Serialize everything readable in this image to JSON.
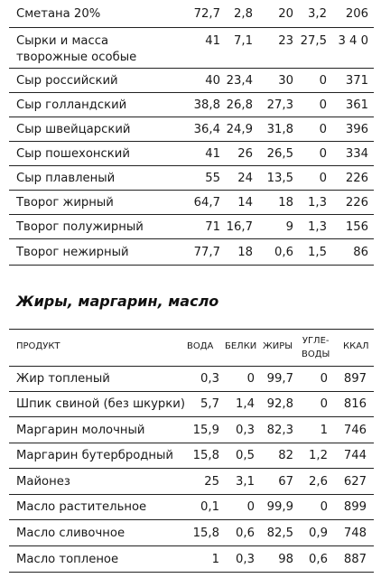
{
  "table1": {
    "rows": [
      {
        "name": "Сметана 20%",
        "water": "72,7",
        "protein": "2,8",
        "fat": "20",
        "carbs": "3,2",
        "kcal": "206"
      },
      {
        "name_line1": "Сырки и масса",
        "name_line2": "творожные особые",
        "water": "41",
        "protein": "7,1",
        "fat": "23",
        "carbs": "27,5",
        "kcal": "3 4 0"
      },
      {
        "name": "Сыр российский",
        "water": "40",
        "protein": "23,4",
        "fat": "30",
        "carbs": "0",
        "kcal": "371"
      },
      {
        "name": "Сыр голландский",
        "water": "38,8",
        "protein": "26,8",
        "fat": "27,3",
        "carbs": "0",
        "kcal": "361"
      },
      {
        "name": "Сыр швейцарский",
        "water": "36,4",
        "protein": "24,9",
        "fat": "31,8",
        "carbs": "0",
        "kcal": "396"
      },
      {
        "name": "Сыр пошехонский",
        "water": "41",
        "protein": "26",
        "fat": "26,5",
        "carbs": "0",
        "kcal": "334"
      },
      {
        "name": "Сыр плавленый",
        "water": "55",
        "protein": "24",
        "fat": "13,5",
        "carbs": "0",
        "kcal": "226"
      },
      {
        "name": "Творог жирный",
        "water": "64,7",
        "protein": "14",
        "fat": "18",
        "carbs": "1,3",
        "kcal": "226"
      },
      {
        "name": "Творог полужирный",
        "water": "71",
        "protein": "16,7",
        "fat": "9",
        "carbs": "1,3",
        "kcal": "156"
      },
      {
        "name": "Творог нежирный",
        "water": "77,7",
        "protein": "18",
        "fat": "0,6",
        "carbs": "1,5",
        "kcal": "86"
      }
    ]
  },
  "section2": {
    "title": "Жиры, маргарин, масло",
    "headers": {
      "product": "ПРОДУКТ",
      "water": "ВОДА",
      "protein": "БЕЛКИ",
      "fat": "ЖИРЫ",
      "carbs_line1": "УГЛЕ-",
      "carbs_line2": "ВОДЫ",
      "kcal": "ККАЛ"
    },
    "rows": [
      {
        "name": "Жир топленый",
        "water": "0,3",
        "protein": "0",
        "fat": "99,7",
        "carbs": "0",
        "kcal": "897"
      },
      {
        "name": "Шпик свиной (без шкурки)",
        "water": "5,7",
        "protein": "1,4",
        "fat": "92,8",
        "carbs": "0",
        "kcal": "816"
      },
      {
        "name": "Маргарин молочный",
        "water": "15,9",
        "protein": "0,3",
        "fat": "82,3",
        "carbs": "1",
        "kcal": "746"
      },
      {
        "name": "Маргарин бутербродный",
        "water": "15,8",
        "protein": "0,5",
        "fat": "82",
        "carbs": "1,2",
        "kcal": "744"
      },
      {
        "name": "Майонез",
        "water": "25",
        "protein": "3,1",
        "fat": "67",
        "carbs": "2,6",
        "kcal": "627"
      },
      {
        "name": "Масло растительное",
        "water": "0,1",
        "protein": "0",
        "fat": "99,9",
        "carbs": "0",
        "kcal": "899"
      },
      {
        "name": "Масло сливочное",
        "water": "15,8",
        "protein": "0,6",
        "fat": "82,5",
        "carbs": "0,9",
        "kcal": "748"
      },
      {
        "name": "Масло топленое",
        "water": "1",
        "protein": "0,3",
        "fat": "98",
        "carbs": "0,6",
        "kcal": "887"
      }
    ]
  }
}
